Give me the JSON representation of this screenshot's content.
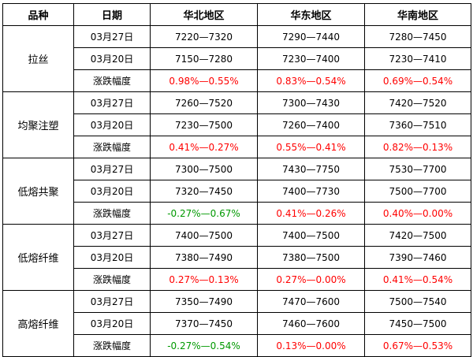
{
  "headers": {
    "product": "品种",
    "date": "日期",
    "north": "华北地区",
    "east": "华东地区",
    "south": "华南地区"
  },
  "groups": [
    {
      "product": "拉丝",
      "rows": [
        {
          "label": "03月27日",
          "north": "7220—7320",
          "east": "7290—7440",
          "south": "7280—7450"
        },
        {
          "label": "03月20日",
          "north": "7150—7280",
          "east": "7230—7400",
          "south": "7230—7410"
        },
        {
          "label": "涨跌幅度",
          "north": "0.98%—0.55%",
          "east": "0.83%—0.54%",
          "south": "0.69%—0.54%"
        }
      ]
    },
    {
      "product": "均聚注塑",
      "rows": [
        {
          "label": "03月27日",
          "north": "7260—7520",
          "east": "7300—7430",
          "south": "7420—7520"
        },
        {
          "label": "03月20日",
          "north": "7230—7500",
          "east": "7260—7400",
          "south": "7360—7510"
        },
        {
          "label": "涨跌幅度",
          "north": "0.41%—0.27%",
          "east": "0.55%—0.41%",
          "south": "0.82%—0.13%"
        }
      ]
    },
    {
      "product": "低熔共聚",
      "rows": [
        {
          "label": "03月27日",
          "north": "7300—7500",
          "east": "7430—7750",
          "south": "7530—7700"
        },
        {
          "label": "03月20日",
          "north": "7320—7450",
          "east": "7400—7730",
          "south": "7500—7700"
        },
        {
          "label": "涨跌幅度",
          "north": "-0.27%—0.67%",
          "east": "0.41%—0.26%",
          "south": "0.40%—0.00%"
        }
      ]
    },
    {
      "product": "低熔纤维",
      "rows": [
        {
          "label": "03月27日",
          "north": "7400—7500",
          "east": "7400—7500",
          "south": "7420—7500"
        },
        {
          "label": "03月20日",
          "north": "7380—7490",
          "east": "7380—7500",
          "south": "7390—7460"
        },
        {
          "label": "涨跌幅度",
          "north": "0.27%—0.13%",
          "east": "0.27%—0.00%",
          "south": "0.41%—0.54%"
        }
      ]
    },
    {
      "product": "高熔纤维",
      "rows": [
        {
          "label": "03月27日",
          "north": "7350—7490",
          "east": "7470—7600",
          "south": "7500—7540"
        },
        {
          "label": "03月20日",
          "north": "7370—7450",
          "east": "7460—7600",
          "south": "7450—7500"
        },
        {
          "label": "涨跌幅度",
          "north": "-0.27%—0.54%",
          "east": "0.13%—0.00%",
          "south": "0.67%—0.53%"
        }
      ]
    }
  ],
  "colors": {
    "up": "#ff0000",
    "down": "#009900"
  }
}
